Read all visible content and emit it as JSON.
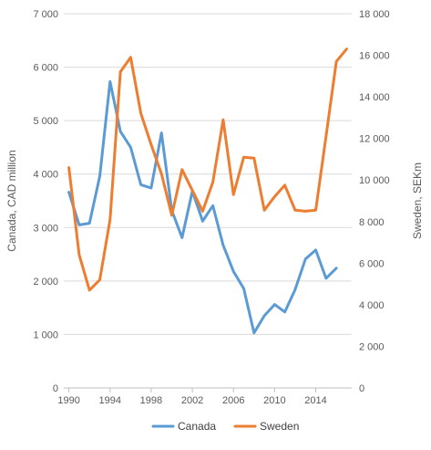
{
  "chart_data": {
    "type": "line",
    "title": "",
    "x": [
      1990,
      1991,
      1992,
      1993,
      1994,
      1995,
      1996,
      1997,
      1998,
      1999,
      2000,
      2001,
      2002,
      2003,
      2004,
      2005,
      2006,
      2007,
      2008,
      2009,
      2010,
      2011,
      2012,
      2013,
      2014,
      2015,
      2016,
      2017
    ],
    "x_ticks": [
      "1990",
      "1994",
      "1998",
      "2002",
      "2006",
      "2010",
      "2014"
    ],
    "x_tick_values": [
      1990,
      1994,
      1998,
      2002,
      2006,
      2010,
      2014
    ],
    "xlim": [
      1989.5,
      2017.5
    ],
    "y_left": {
      "label": "Canada, CAD million",
      "lim": [
        0,
        7000
      ],
      "ticks": [
        "0",
        "1 000",
        "2 000",
        "3 000",
        "4 000",
        "5 000",
        "6 000",
        "7 000"
      ],
      "tick_values": [
        0,
        1000,
        2000,
        3000,
        4000,
        5000,
        6000,
        7000
      ]
    },
    "y_right": {
      "label": "Sweden, SEKm",
      "lim": [
        0,
        18000
      ],
      "ticks": [
        "0",
        "2 000",
        "4 000",
        "6 000",
        "8 000",
        "10 000",
        "12 000",
        "14 000",
        "16 000",
        "18 000"
      ],
      "tick_values": [
        0,
        2000,
        4000,
        6000,
        8000,
        10000,
        12000,
        14000,
        16000,
        18000
      ]
    },
    "series": [
      {
        "name": "Canada",
        "axis": "left",
        "color": "#5B9BD5",
        "values": [
          3660,
          3050,
          3080,
          3960,
          5730,
          4800,
          4500,
          3800,
          3740,
          4770,
          3320,
          2810,
          3680,
          3120,
          3410,
          2670,
          2180,
          1860,
          1030,
          1350,
          1560,
          1420,
          1840,
          2410,
          2580,
          2050,
          2240,
          null
        ]
      },
      {
        "name": "Sweden",
        "axis": "right",
        "color": "#ED7D31",
        "values": [
          10600,
          6400,
          4700,
          5200,
          8100,
          15200,
          15900,
          13200,
          11700,
          10300,
          8300,
          10500,
          9500,
          8500,
          9900,
          12900,
          9300,
          11100,
          11050,
          8550,
          9200,
          9750,
          8550,
          8500,
          8550,
          12100,
          15700,
          16300
        ]
      }
    ],
    "grid": true,
    "legend_position": "bottom"
  }
}
